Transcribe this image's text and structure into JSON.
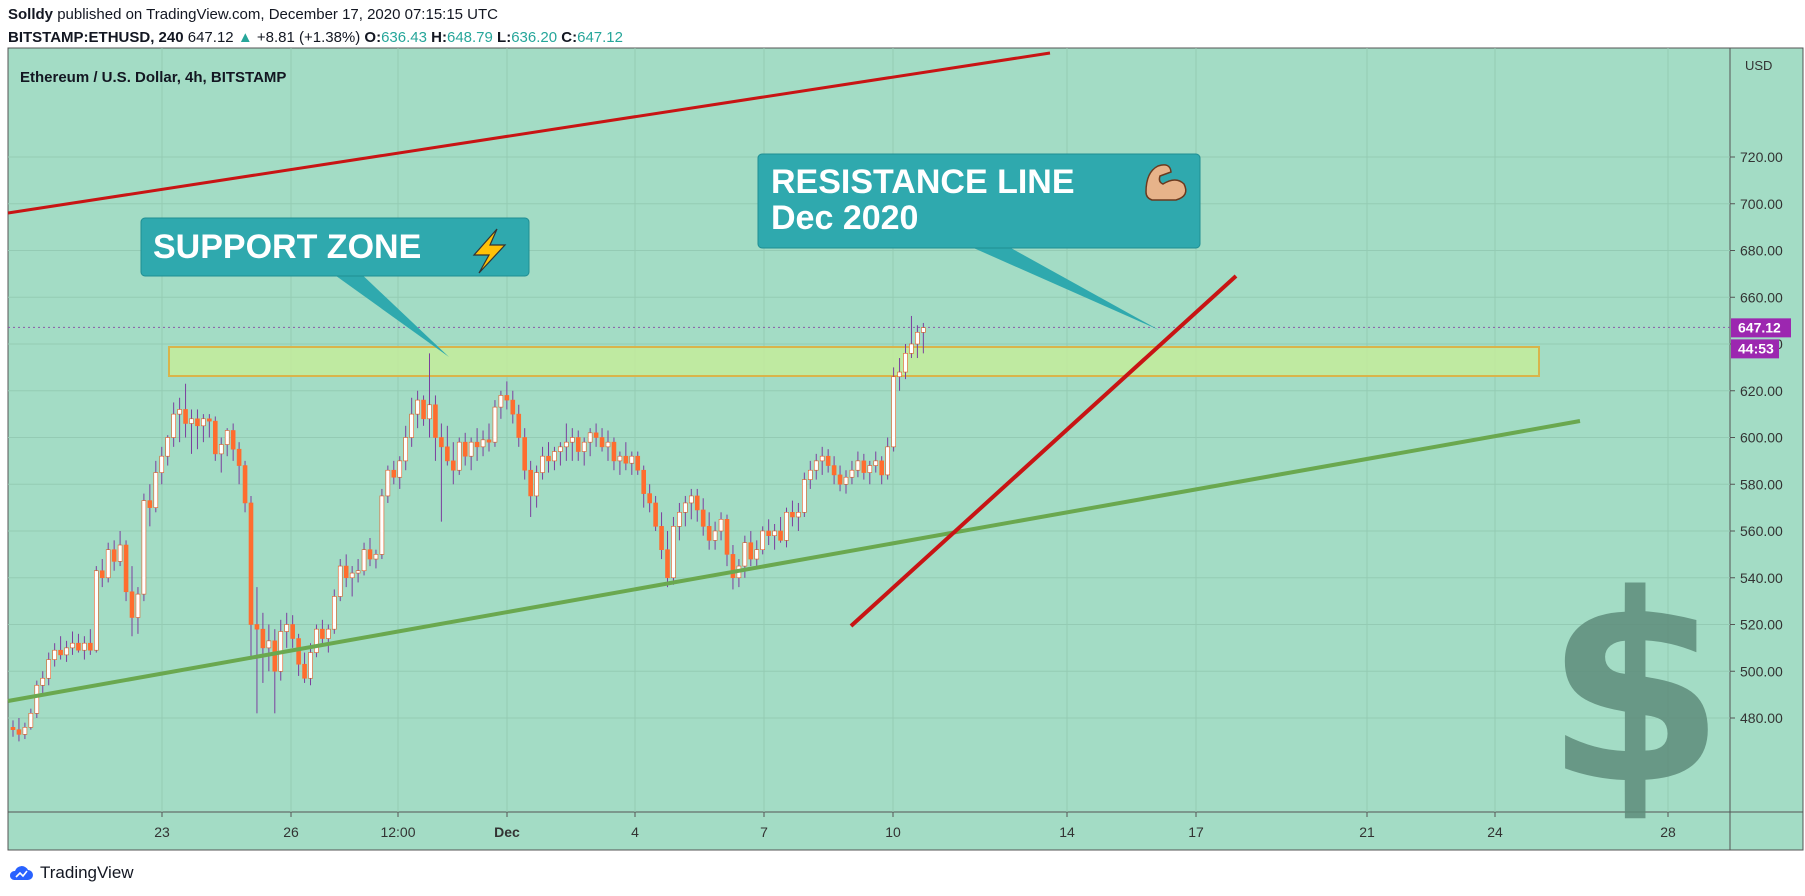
{
  "header": {
    "publisher": "Solldy",
    "published_text": "published on TradingView.com, December 17, 2020 07:15:15 UTC",
    "symbol": "BITSTAMP:ETHUSD, 240",
    "last": "647.12",
    "change": "+8.81 (+1.38%)",
    "o_label": "O:",
    "o": "636.43",
    "h_label": "H:",
    "h": "648.79",
    "l_label": "L:",
    "l": "636.20",
    "c_label": "C:",
    "c": "647.12"
  },
  "footer": {
    "brand": "TradingView"
  },
  "chart_data": {
    "type": "candlestick",
    "title": "Ethereum / U.S. Dollar, 4h, BITSTAMP",
    "currency": "USD",
    "price_label": "647.12",
    "countdown_label": "44:53",
    "y_ticks": [
      480,
      500,
      520,
      540,
      560,
      580,
      600,
      620,
      640,
      660,
      680,
      700,
      720
    ],
    "y_tick_labels": [
      "480.00",
      "500.00",
      "520.00",
      "540.00",
      "560.00",
      "580.00",
      "600.00",
      "620.00",
      "640.00",
      "660.00",
      "680.00",
      "700.00",
      "720.00"
    ],
    "x_ticks": [
      {
        "label": "23",
        "bold": false
      },
      {
        "label": "26",
        "bold": false
      },
      {
        "label": "12:00",
        "bold": false
      },
      {
        "label": "Dec",
        "bold": true
      },
      {
        "label": "4",
        "bold": false
      },
      {
        "label": "7",
        "bold": false
      },
      {
        "label": "10",
        "bold": false
      },
      {
        "label": "14",
        "bold": false
      },
      {
        "label": "17",
        "bold": false
      },
      {
        "label": "21",
        "bold": false
      },
      {
        "label": "24",
        "bold": false
      },
      {
        "label": "28",
        "bold": false
      }
    ],
    "annotations": {
      "support": "SUPPORT ZONE",
      "resistance_line1": "RESISTANCE LINE",
      "resistance_line2": "Dec 2020"
    },
    "colors": {
      "background": "#a3dcc5",
      "up_candle": "#ffffff",
      "down_candle": "#ff6d2e",
      "wick": "#7b3f9e",
      "red_line": "#c81414",
      "green_line": "#6aa84f",
      "zone_fill": "#c4ec9a",
      "zone_border": "#d9b44a",
      "callout": "#2fa9ae",
      "price_tag": "#9c27b0"
    },
    "series": [
      {
        "o": 476,
        "h": 479,
        "l": 472,
        "c": 475
      },
      {
        "o": 475,
        "h": 480,
        "l": 470,
        "c": 473
      },
      {
        "o": 473,
        "h": 478,
        "l": 471,
        "c": 476
      },
      {
        "o": 476,
        "h": 484,
        "l": 475,
        "c": 482
      },
      {
        "o": 482,
        "h": 496,
        "l": 480,
        "c": 494
      },
      {
        "o": 494,
        "h": 500,
        "l": 490,
        "c": 497
      },
      {
        "o": 497,
        "h": 508,
        "l": 494,
        "c": 505
      },
      {
        "o": 505,
        "h": 512,
        "l": 502,
        "c": 509
      },
      {
        "o": 509,
        "h": 515,
        "l": 505,
        "c": 507
      },
      {
        "o": 507,
        "h": 513,
        "l": 504,
        "c": 510
      },
      {
        "o": 510,
        "h": 517,
        "l": 507,
        "c": 512
      },
      {
        "o": 512,
        "h": 516,
        "l": 508,
        "c": 509
      },
      {
        "o": 509,
        "h": 515,
        "l": 505,
        "c": 512
      },
      {
        "o": 512,
        "h": 518,
        "l": 507,
        "c": 509
      },
      {
        "o": 509,
        "h": 545,
        "l": 508,
        "c": 543
      },
      {
        "o": 543,
        "h": 548,
        "l": 536,
        "c": 540
      },
      {
        "o": 540,
        "h": 555,
        "l": 538,
        "c": 552
      },
      {
        "o": 552,
        "h": 556,
        "l": 543,
        "c": 547
      },
      {
        "o": 547,
        "h": 560,
        "l": 545,
        "c": 554
      },
      {
        "o": 554,
        "h": 556,
        "l": 530,
        "c": 534
      },
      {
        "o": 534,
        "h": 545,
        "l": 515,
        "c": 523
      },
      {
        "o": 523,
        "h": 536,
        "l": 516,
        "c": 533
      },
      {
        "o": 533,
        "h": 576,
        "l": 530,
        "c": 573
      },
      {
        "o": 573,
        "h": 580,
        "l": 562,
        "c": 570
      },
      {
        "o": 570,
        "h": 590,
        "l": 568,
        "c": 585
      },
      {
        "o": 585,
        "h": 596,
        "l": 580,
        "c": 592
      },
      {
        "o": 592,
        "h": 601,
        "l": 588,
        "c": 600
      },
      {
        "o": 600,
        "h": 615,
        "l": 596,
        "c": 610
      },
      {
        "o": 610,
        "h": 617,
        "l": 598,
        "c": 612
      },
      {
        "o": 612,
        "h": 623,
        "l": 600,
        "c": 606
      },
      {
        "o": 606,
        "h": 612,
        "l": 593,
        "c": 608
      },
      {
        "o": 608,
        "h": 612,
        "l": 595,
        "c": 605
      },
      {
        "o": 605,
        "h": 610,
        "l": 598,
        "c": 608
      },
      {
        "o": 608,
        "h": 610,
        "l": 600,
        "c": 607
      },
      {
        "o": 607,
        "h": 609,
        "l": 590,
        "c": 593
      },
      {
        "o": 593,
        "h": 600,
        "l": 585,
        "c": 597
      },
      {
        "o": 597,
        "h": 604,
        "l": 592,
        "c": 603
      },
      {
        "o": 603,
        "h": 606,
        "l": 590,
        "c": 595
      },
      {
        "o": 595,
        "h": 598,
        "l": 580,
        "c": 588
      },
      {
        "o": 588,
        "h": 590,
        "l": 568,
        "c": 572
      },
      {
        "o": 572,
        "h": 575,
        "l": 505,
        "c": 520
      },
      {
        "o": 520,
        "h": 536,
        "l": 482,
        "c": 518
      },
      {
        "o": 518,
        "h": 525,
        "l": 495,
        "c": 510
      },
      {
        "o": 510,
        "h": 520,
        "l": 500,
        "c": 513
      },
      {
        "o": 513,
        "h": 518,
        "l": 482,
        "c": 500
      },
      {
        "o": 500,
        "h": 522,
        "l": 496,
        "c": 517
      },
      {
        "o": 517,
        "h": 525,
        "l": 510,
        "c": 520
      },
      {
        "o": 520,
        "h": 524,
        "l": 510,
        "c": 514
      },
      {
        "o": 514,
        "h": 516,
        "l": 498,
        "c": 503
      },
      {
        "o": 503,
        "h": 508,
        "l": 495,
        "c": 497
      },
      {
        "o": 497,
        "h": 512,
        "l": 494,
        "c": 508
      },
      {
        "o": 508,
        "h": 520,
        "l": 506,
        "c": 518
      },
      {
        "o": 518,
        "h": 522,
        "l": 512,
        "c": 514
      },
      {
        "o": 514,
        "h": 520,
        "l": 508,
        "c": 518
      },
      {
        "o": 518,
        "h": 535,
        "l": 516,
        "c": 532
      },
      {
        "o": 532,
        "h": 548,
        "l": 530,
        "c": 545
      },
      {
        "o": 545,
        "h": 550,
        "l": 536,
        "c": 540
      },
      {
        "o": 540,
        "h": 545,
        "l": 532,
        "c": 542
      },
      {
        "o": 542,
        "h": 548,
        "l": 538,
        "c": 543
      },
      {
        "o": 543,
        "h": 555,
        "l": 541,
        "c": 552
      },
      {
        "o": 552,
        "h": 557,
        "l": 545,
        "c": 548
      },
      {
        "o": 548,
        "h": 552,
        "l": 544,
        "c": 550
      },
      {
        "o": 550,
        "h": 578,
        "l": 548,
        "c": 575
      },
      {
        "o": 575,
        "h": 588,
        "l": 572,
        "c": 586
      },
      {
        "o": 586,
        "h": 590,
        "l": 580,
        "c": 583
      },
      {
        "o": 583,
        "h": 592,
        "l": 578,
        "c": 590
      },
      {
        "o": 590,
        "h": 605,
        "l": 586,
        "c": 600
      },
      {
        "o": 600,
        "h": 617,
        "l": 596,
        "c": 610
      },
      {
        "o": 610,
        "h": 620,
        "l": 604,
        "c": 616
      },
      {
        "o": 616,
        "h": 618,
        "l": 605,
        "c": 608
      },
      {
        "o": 608,
        "h": 636,
        "l": 600,
        "c": 614
      },
      {
        "o": 614,
        "h": 618,
        "l": 590,
        "c": 600
      },
      {
        "o": 600,
        "h": 606,
        "l": 564,
        "c": 596
      },
      {
        "o": 596,
        "h": 605,
        "l": 588,
        "c": 590
      },
      {
        "o": 590,
        "h": 598,
        "l": 580,
        "c": 586
      },
      {
        "o": 586,
        "h": 600,
        "l": 584,
        "c": 598
      },
      {
        "o": 598,
        "h": 602,
        "l": 588,
        "c": 592
      },
      {
        "o": 592,
        "h": 600,
        "l": 586,
        "c": 598
      },
      {
        "o": 598,
        "h": 604,
        "l": 590,
        "c": 596
      },
      {
        "o": 596,
        "h": 603,
        "l": 592,
        "c": 599
      },
      {
        "o": 599,
        "h": 606,
        "l": 594,
        "c": 598
      },
      {
        "o": 598,
        "h": 616,
        "l": 596,
        "c": 613
      },
      {
        "o": 613,
        "h": 620,
        "l": 608,
        "c": 618
      },
      {
        "o": 618,
        "h": 624,
        "l": 612,
        "c": 616
      },
      {
        "o": 616,
        "h": 620,
        "l": 606,
        "c": 610
      },
      {
        "o": 610,
        "h": 614,
        "l": 596,
        "c": 600
      },
      {
        "o": 600,
        "h": 604,
        "l": 582,
        "c": 586
      },
      {
        "o": 586,
        "h": 590,
        "l": 566,
        "c": 575
      },
      {
        "o": 575,
        "h": 588,
        "l": 570,
        "c": 585
      },
      {
        "o": 585,
        "h": 596,
        "l": 582,
        "c": 592
      },
      {
        "o": 592,
        "h": 598,
        "l": 585,
        "c": 590
      },
      {
        "o": 590,
        "h": 596,
        "l": 586,
        "c": 594
      },
      {
        "o": 594,
        "h": 598,
        "l": 588,
        "c": 596
      },
      {
        "o": 596,
        "h": 606,
        "l": 590,
        "c": 598
      },
      {
        "o": 598,
        "h": 604,
        "l": 590,
        "c": 600
      },
      {
        "o": 600,
        "h": 603,
        "l": 590,
        "c": 594
      },
      {
        "o": 594,
        "h": 600,
        "l": 588,
        "c": 598
      },
      {
        "o": 598,
        "h": 604,
        "l": 592,
        "c": 602
      },
      {
        "o": 602,
        "h": 606,
        "l": 596,
        "c": 600
      },
      {
        "o": 600,
        "h": 604,
        "l": 594,
        "c": 596
      },
      {
        "o": 596,
        "h": 603,
        "l": 590,
        "c": 598
      },
      {
        "o": 598,
        "h": 600,
        "l": 586,
        "c": 590
      },
      {
        "o": 590,
        "h": 594,
        "l": 584,
        "c": 592
      },
      {
        "o": 592,
        "h": 598,
        "l": 586,
        "c": 589
      },
      {
        "o": 589,
        "h": 594,
        "l": 584,
        "c": 592
      },
      {
        "o": 592,
        "h": 594,
        "l": 584,
        "c": 586
      },
      {
        "o": 586,
        "h": 588,
        "l": 570,
        "c": 576
      },
      {
        "o": 576,
        "h": 580,
        "l": 568,
        "c": 572
      },
      {
        "o": 572,
        "h": 575,
        "l": 560,
        "c": 562
      },
      {
        "o": 562,
        "h": 568,
        "l": 548,
        "c": 552
      },
      {
        "o": 552,
        "h": 560,
        "l": 536,
        "c": 540
      },
      {
        "o": 540,
        "h": 566,
        "l": 537,
        "c": 562
      },
      {
        "o": 562,
        "h": 572,
        "l": 556,
        "c": 568
      },
      {
        "o": 568,
        "h": 575,
        "l": 562,
        "c": 572
      },
      {
        "o": 572,
        "h": 578,
        "l": 565,
        "c": 575
      },
      {
        "o": 575,
        "h": 578,
        "l": 564,
        "c": 569
      },
      {
        "o": 569,
        "h": 574,
        "l": 558,
        "c": 562
      },
      {
        "o": 562,
        "h": 568,
        "l": 552,
        "c": 556
      },
      {
        "o": 556,
        "h": 564,
        "l": 552,
        "c": 560
      },
      {
        "o": 560,
        "h": 568,
        "l": 556,
        "c": 565
      },
      {
        "o": 565,
        "h": 567,
        "l": 545,
        "c": 550
      },
      {
        "o": 550,
        "h": 554,
        "l": 535,
        "c": 540
      },
      {
        "o": 540,
        "h": 548,
        "l": 536,
        "c": 545
      },
      {
        "o": 545,
        "h": 558,
        "l": 540,
        "c": 555
      },
      {
        "o": 555,
        "h": 560,
        "l": 545,
        "c": 548
      },
      {
        "o": 548,
        "h": 556,
        "l": 544,
        "c": 552
      },
      {
        "o": 552,
        "h": 562,
        "l": 550,
        "c": 560
      },
      {
        "o": 560,
        "h": 565,
        "l": 554,
        "c": 558
      },
      {
        "o": 558,
        "h": 563,
        "l": 552,
        "c": 560
      },
      {
        "o": 560,
        "h": 566,
        "l": 555,
        "c": 556
      },
      {
        "o": 556,
        "h": 570,
        "l": 553,
        "c": 568
      },
      {
        "o": 568,
        "h": 573,
        "l": 562,
        "c": 566
      },
      {
        "o": 566,
        "h": 572,
        "l": 560,
        "c": 568
      },
      {
        "o": 568,
        "h": 585,
        "l": 566,
        "c": 582
      },
      {
        "o": 582,
        "h": 590,
        "l": 578,
        "c": 586
      },
      {
        "o": 586,
        "h": 593,
        "l": 582,
        "c": 590
      },
      {
        "o": 590,
        "h": 596,
        "l": 584,
        "c": 592
      },
      {
        "o": 592,
        "h": 595,
        "l": 585,
        "c": 588
      },
      {
        "o": 588,
        "h": 592,
        "l": 580,
        "c": 584
      },
      {
        "o": 584,
        "h": 588,
        "l": 577,
        "c": 580
      },
      {
        "o": 580,
        "h": 586,
        "l": 576,
        "c": 583
      },
      {
        "o": 583,
        "h": 590,
        "l": 580,
        "c": 586
      },
      {
        "o": 586,
        "h": 594,
        "l": 583,
        "c": 590
      },
      {
        "o": 590,
        "h": 593,
        "l": 582,
        "c": 585
      },
      {
        "o": 585,
        "h": 590,
        "l": 580,
        "c": 588
      },
      {
        "o": 588,
        "h": 594,
        "l": 585,
        "c": 590
      },
      {
        "o": 590,
        "h": 592,
        "l": 580,
        "c": 584
      },
      {
        "o": 584,
        "h": 600,
        "l": 582,
        "c": 596
      },
      {
        "o": 596,
        "h": 630,
        "l": 594,
        "c": 626
      },
      {
        "o": 626,
        "h": 634,
        "l": 620,
        "c": 628
      },
      {
        "o": 628,
        "h": 640,
        "l": 625,
        "c": 636
      },
      {
        "o": 636,
        "h": 652,
        "l": 634,
        "c": 640
      },
      {
        "o": 640,
        "h": 648,
        "l": 634,
        "c": 645
      },
      {
        "o": 645,
        "h": 649,
        "l": 636,
        "c": 647
      }
    ]
  }
}
